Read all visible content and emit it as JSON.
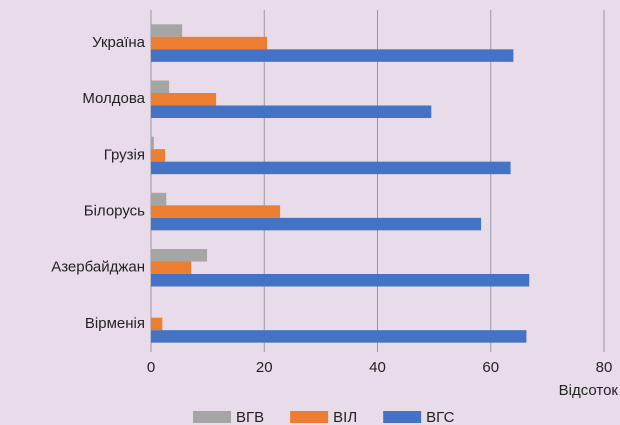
{
  "chart_data": {
    "type": "bar",
    "orientation": "horizontal",
    "categories": [
      "Україна",
      "Молдова",
      "Грузія",
      "Білорусь",
      "Азербайджан",
      "Вірменія"
    ],
    "series": [
      {
        "name": "ВГВ",
        "color": "#a5a5a5",
        "values": [
          5.5,
          3.2,
          0.5,
          2.7,
          9.9,
          0
        ]
      },
      {
        "name": "ВІЛ",
        "color": "#ed7d31",
        "values": [
          20.5,
          11.5,
          2.5,
          22.8,
          7.1,
          2
        ]
      },
      {
        "name": "ВГС",
        "color": "#4472c4",
        "values": [
          64,
          49.5,
          63.5,
          58.3,
          66.8,
          66.3
        ]
      }
    ],
    "x_label": "Відсоток",
    "xlim": [
      0,
      80
    ],
    "xticks": [
      0,
      20,
      40,
      60,
      80
    ],
    "grid": true,
    "legend": "bottom"
  }
}
